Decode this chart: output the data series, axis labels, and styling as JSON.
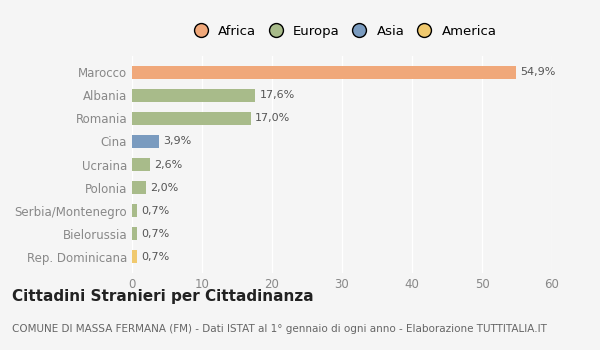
{
  "categories": [
    "Rep. Dominicana",
    "Bielorussia",
    "Serbia/Montenegro",
    "Polonia",
    "Ucraina",
    "Cina",
    "Romania",
    "Albania",
    "Marocco"
  ],
  "values": [
    0.7,
    0.7,
    0.7,
    2.0,
    2.6,
    3.9,
    17.0,
    17.6,
    54.9
  ],
  "labels": [
    "0,7%",
    "0,7%",
    "0,7%",
    "2,0%",
    "2,6%",
    "3,9%",
    "17,0%",
    "17,6%",
    "54,9%"
  ],
  "bar_colors": [
    "#f0c96e",
    "#a8bb8a",
    "#a8bb8a",
    "#a8bb8a",
    "#a8bb8a",
    "#7a9bbf",
    "#a8bb8a",
    "#a8bb8a",
    "#f0a87a"
  ],
  "legend_labels": [
    "Africa",
    "Europa",
    "Asia",
    "America"
  ],
  "legend_colors": [
    "#f0a87a",
    "#a8bb8a",
    "#7a9bbf",
    "#f0c96e"
  ],
  "xlim": [
    0,
    60
  ],
  "xticks": [
    0,
    10,
    20,
    30,
    40,
    50,
    60
  ],
  "title": "Cittadini Stranieri per Cittadinanza",
  "subtitle": "COMUNE DI MASSA FERMANA (FM) - Dati ISTAT al 1° gennaio di ogni anno - Elaborazione TUTTITALIA.IT",
  "background_color": "#f5f5f5",
  "bar_height": 0.55,
  "title_fontsize": 11,
  "subtitle_fontsize": 7.5,
  "label_fontsize": 8,
  "tick_fontsize": 8.5,
  "legend_fontsize": 9.5
}
